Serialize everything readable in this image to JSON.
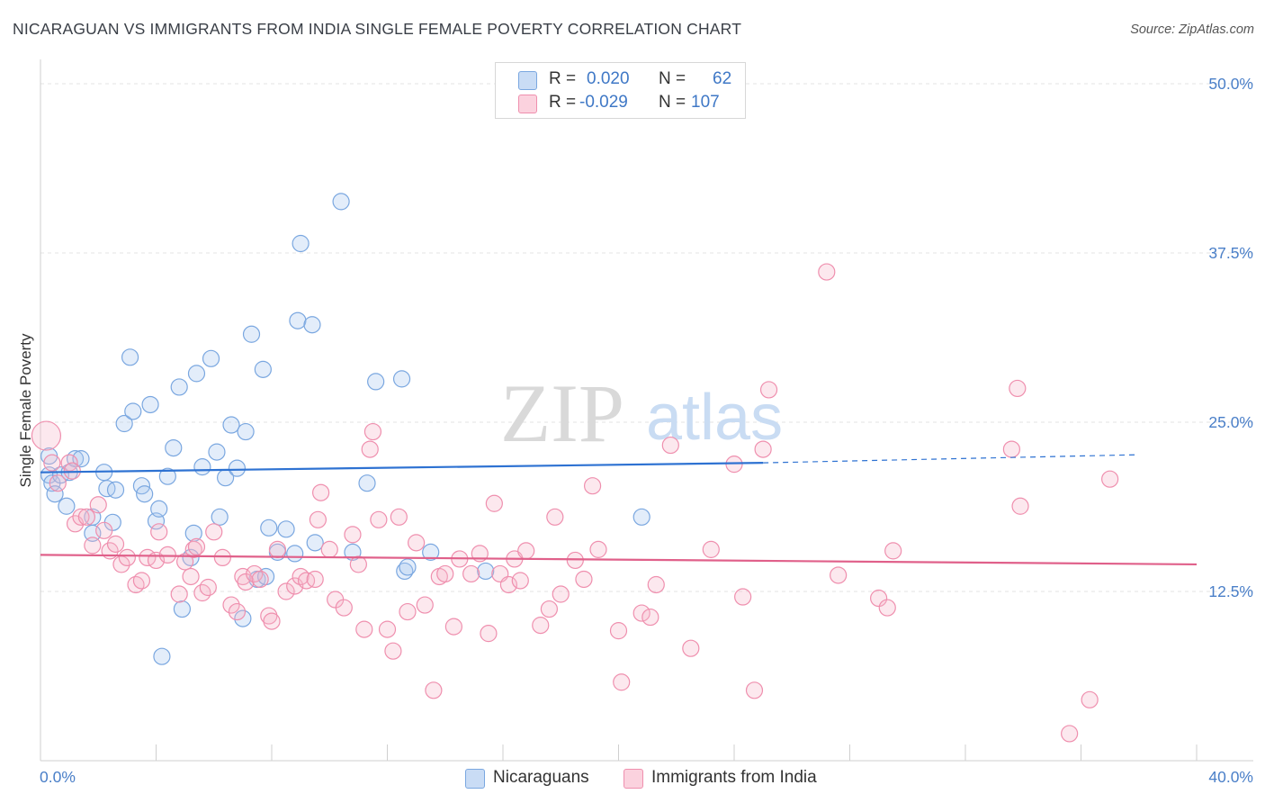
{
  "title": "NICARAGUAN VS IMMIGRANTS FROM INDIA SINGLE FEMALE POVERTY CORRELATION CHART",
  "source": "Source: ZipAtlas.com",
  "watermark": {
    "zip": "ZIP",
    "atlas": "atlas"
  },
  "legend": {
    "rows": [
      {
        "r_label": "R =",
        "r_value": "0.020",
        "n_label": "N =",
        "n_value": "62",
        "color": "#a9c8f0"
      },
      {
        "r_label": "R =",
        "r_value": "-0.029",
        "n_label": "N =",
        "n_value": "107",
        "color": "#f5b8cb"
      }
    ]
  },
  "bottom_legend": {
    "items": [
      {
        "label": "Nicaraguans",
        "color": "#a9c8f0"
      },
      {
        "label": "Immigrants from India",
        "color": "#f5b8cb"
      }
    ]
  },
  "chart_data": {
    "type": "scatter",
    "title": "NICARAGUAN VS IMMIGRANTS FROM INDIA SINGLE FEMALE POVERTY CORRELATION CHART",
    "xlabel": "",
    "ylabel": "Single Female Poverty",
    "xlim": [
      0,
      40
    ],
    "ylim": [
      0,
      51
    ],
    "x_tick_labels": [
      "0.0%",
      "40.0%"
    ],
    "y_ticks": [
      12.5,
      25.0,
      37.5,
      50.0
    ],
    "y_tick_labels": [
      "12.5%",
      "25.0%",
      "37.5%",
      "50.0%"
    ],
    "grid": true,
    "series": [
      {
        "name": "Nicaraguans",
        "color": "#7aa7e0",
        "trend_color": "#2e72d2",
        "trend": {
          "x0": 0,
          "y0": 21.3,
          "x1": 25,
          "y1": 22.0,
          "dash_x1": 38,
          "dash_y1": 22.6
        },
        "points": [
          [
            0.3,
            22.5
          ],
          [
            0.3,
            21.1
          ],
          [
            0.4,
            20.5
          ],
          [
            0.5,
            19.7
          ],
          [
            0.7,
            21.1
          ],
          [
            0.9,
            18.8
          ],
          [
            1.0,
            21.3
          ],
          [
            1.2,
            22.3
          ],
          [
            1.4,
            22.3
          ],
          [
            1.8,
            16.8
          ],
          [
            1.8,
            18.0
          ],
          [
            2.2,
            21.3
          ],
          [
            2.3,
            20.1
          ],
          [
            2.5,
            17.6
          ],
          [
            2.6,
            20.0
          ],
          [
            2.9,
            24.9
          ],
          [
            3.1,
            29.8
          ],
          [
            3.2,
            25.8
          ],
          [
            3.5,
            20.3
          ],
          [
            3.6,
            19.7
          ],
          [
            3.8,
            26.3
          ],
          [
            4.0,
            17.7
          ],
          [
            4.1,
            18.6
          ],
          [
            4.4,
            21.0
          ],
          [
            4.6,
            23.1
          ],
          [
            4.8,
            27.6
          ],
          [
            4.9,
            11.2
          ],
          [
            5.2,
            15.0
          ],
          [
            5.3,
            16.8
          ],
          [
            5.4,
            28.6
          ],
          [
            5.6,
            21.7
          ],
          [
            5.9,
            29.7
          ],
          [
            6.1,
            22.8
          ],
          [
            6.2,
            18.0
          ],
          [
            6.4,
            20.9
          ],
          [
            6.6,
            24.8
          ],
          [
            6.8,
            21.6
          ],
          [
            7.0,
            10.5
          ],
          [
            7.1,
            24.3
          ],
          [
            7.3,
            31.5
          ],
          [
            7.5,
            13.4
          ],
          [
            7.7,
            28.9
          ],
          [
            7.8,
            13.6
          ],
          [
            7.9,
            17.2
          ],
          [
            8.2,
            15.4
          ],
          [
            8.5,
            17.1
          ],
          [
            8.8,
            15.3
          ],
          [
            8.9,
            32.5
          ],
          [
            9.0,
            38.2
          ],
          [
            9.4,
            32.2
          ],
          [
            9.5,
            16.1
          ],
          [
            10.4,
            41.3
          ],
          [
            10.8,
            15.4
          ],
          [
            11.3,
            20.5
          ],
          [
            11.6,
            28.0
          ],
          [
            12.5,
            28.2
          ],
          [
            12.6,
            14.0
          ],
          [
            12.7,
            14.3
          ],
          [
            13.5,
            15.4
          ],
          [
            15.4,
            14.0
          ],
          [
            20.8,
            18.0
          ],
          [
            4.2,
            7.7
          ]
        ]
      },
      {
        "name": "Immigrants from India",
        "color": "#ef8fae",
        "trend_color": "#e0608a",
        "trend": {
          "x0": 0,
          "y0": 15.2,
          "x1": 40,
          "y1": 14.5
        },
        "points": [
          [
            0.2,
            24.0
          ],
          [
            0.4,
            22.0
          ],
          [
            0.6,
            20.5
          ],
          [
            1.0,
            22.0
          ],
          [
            1.1,
            21.4
          ],
          [
            1.2,
            17.5
          ],
          [
            1.4,
            18.0
          ],
          [
            1.6,
            18.0
          ],
          [
            1.8,
            15.9
          ],
          [
            2.0,
            18.9
          ],
          [
            2.2,
            17.0
          ],
          [
            2.4,
            15.5
          ],
          [
            2.6,
            16.0
          ],
          [
            2.8,
            14.5
          ],
          [
            3.0,
            15.0
          ],
          [
            3.3,
            13.0
          ],
          [
            3.5,
            13.3
          ],
          [
            3.7,
            15.0
          ],
          [
            4.0,
            14.8
          ],
          [
            4.1,
            16.9
          ],
          [
            4.4,
            15.2
          ],
          [
            4.8,
            12.3
          ],
          [
            5.0,
            14.7
          ],
          [
            5.2,
            13.6
          ],
          [
            5.3,
            15.6
          ],
          [
            5.4,
            15.8
          ],
          [
            5.6,
            12.4
          ],
          [
            5.8,
            12.8
          ],
          [
            6.0,
            16.9
          ],
          [
            6.3,
            15.0
          ],
          [
            6.6,
            11.5
          ],
          [
            6.8,
            11.0
          ],
          [
            7.0,
            13.6
          ],
          [
            7.1,
            13.2
          ],
          [
            7.4,
            13.8
          ],
          [
            7.6,
            13.4
          ],
          [
            7.9,
            10.7
          ],
          [
            8.0,
            10.3
          ],
          [
            8.2,
            15.6
          ],
          [
            8.5,
            12.5
          ],
          [
            8.8,
            12.9
          ],
          [
            9.0,
            13.6
          ],
          [
            9.2,
            13.3
          ],
          [
            9.5,
            13.4
          ],
          [
            9.6,
            17.8
          ],
          [
            9.7,
            19.8
          ],
          [
            10.0,
            15.6
          ],
          [
            10.2,
            11.9
          ],
          [
            10.5,
            11.3
          ],
          [
            10.8,
            16.7
          ],
          [
            11.0,
            14.5
          ],
          [
            11.2,
            9.7
          ],
          [
            11.4,
            23.0
          ],
          [
            11.5,
            24.3
          ],
          [
            11.7,
            17.8
          ],
          [
            12.0,
            9.7
          ],
          [
            12.2,
            8.1
          ],
          [
            12.4,
            18.0
          ],
          [
            12.7,
            11.0
          ],
          [
            13.0,
            16.1
          ],
          [
            13.3,
            11.5
          ],
          [
            13.6,
            5.2
          ],
          [
            13.8,
            13.6
          ],
          [
            14.0,
            13.8
          ],
          [
            14.3,
            9.9
          ],
          [
            14.5,
            14.9
          ],
          [
            14.9,
            13.8
          ],
          [
            15.2,
            15.3
          ],
          [
            15.5,
            9.4
          ],
          [
            15.7,
            19.0
          ],
          [
            15.9,
            13.8
          ],
          [
            16.2,
            13.0
          ],
          [
            16.4,
            14.9
          ],
          [
            16.6,
            13.3
          ],
          [
            16.8,
            15.5
          ],
          [
            17.3,
            10.0
          ],
          [
            17.6,
            11.2
          ],
          [
            17.8,
            18.0
          ],
          [
            18.0,
            12.3
          ],
          [
            18.5,
            14.8
          ],
          [
            18.8,
            13.4
          ],
          [
            19.1,
            20.3
          ],
          [
            19.3,
            15.6
          ],
          [
            20.0,
            9.6
          ],
          [
            20.1,
            5.8
          ],
          [
            20.8,
            10.9
          ],
          [
            21.1,
            10.6
          ],
          [
            21.3,
            13.0
          ],
          [
            21.8,
            23.3
          ],
          [
            22.5,
            8.3
          ],
          [
            23.2,
            15.6
          ],
          [
            24.0,
            21.9
          ],
          [
            24.3,
            12.1
          ],
          [
            24.7,
            5.2
          ],
          [
            25.0,
            23.0
          ],
          [
            25.2,
            27.4
          ],
          [
            27.2,
            36.1
          ],
          [
            27.6,
            13.7
          ],
          [
            29.0,
            12.0
          ],
          [
            29.3,
            11.3
          ],
          [
            29.5,
            15.5
          ],
          [
            33.6,
            23.0
          ],
          [
            33.8,
            27.5
          ],
          [
            33.9,
            18.8
          ],
          [
            35.6,
            2.0
          ],
          [
            36.3,
            4.5
          ],
          [
            37.0,
            20.8
          ]
        ]
      }
    ]
  }
}
